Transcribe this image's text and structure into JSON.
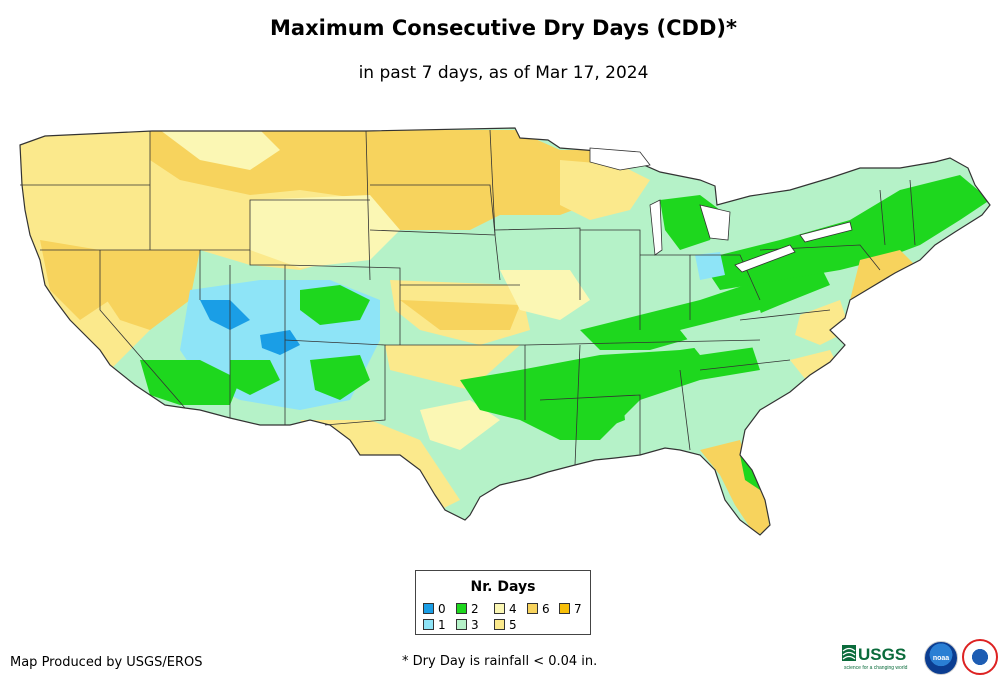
{
  "title": "Maximum Consecutive Dry Days (CDD)*",
  "subtitle": "in past 7 days, as of Mar 17, 2024",
  "legend": {
    "title": "Nr. Days",
    "items": [
      {
        "label": "0",
        "color": "#1a9ee6"
      },
      {
        "label": "1",
        "color": "#8ee4f7"
      },
      {
        "label": "2",
        "color": "#1ed71e"
      },
      {
        "label": "3",
        "color": "#b5f2c8"
      },
      {
        "label": "4",
        "color": "#fbf7b4"
      },
      {
        "label": "5",
        "color": "#fbe98c"
      },
      {
        "label": "6",
        "color": "#f7d35d"
      },
      {
        "label": "7",
        "color": "#f7bf09"
      }
    ]
  },
  "footer": {
    "credit": "Map Produced by USGS/EROS",
    "note": "* Dry Day is rainfall < 0.04 in."
  },
  "logos": {
    "usgs": "USGS",
    "usgs_tagline": "science for a changing world",
    "noaa": "noaa"
  },
  "colors": {
    "border": "#333333",
    "water": "#ffffff"
  }
}
